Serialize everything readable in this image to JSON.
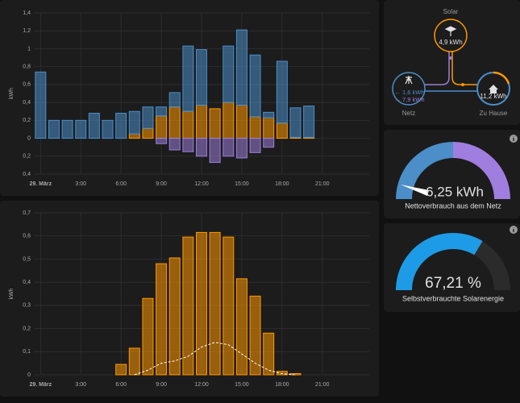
{
  "chart_data": [
    {
      "type": "bar",
      "stacked": true,
      "ylabel": "kWh",
      "x": [
        0,
        1,
        2,
        3,
        4,
        5,
        6,
        7,
        8,
        9,
        10,
        11,
        12,
        13,
        14,
        15,
        16,
        17,
        18,
        19,
        20
      ],
      "xlim": [
        -0.5,
        24.5
      ],
      "xticks": [
        {
          "value": 0,
          "label": "29. März"
        },
        {
          "value": 3,
          "label": "3:00"
        },
        {
          "value": 6,
          "label": "6:00"
        },
        {
          "value": 9,
          "label": "9:00"
        },
        {
          "value": 12,
          "label": "12:00"
        },
        {
          "value": 15,
          "label": "15:00"
        },
        {
          "value": 18,
          "label": "18:00"
        },
        {
          "value": 21,
          "label": "21:00"
        }
      ],
      "ylim": [
        -0.4,
        1.4
      ],
      "yticks": [
        {
          "value": -0.4,
          "label": "0,4"
        },
        {
          "value": -0.2,
          "label": "0,2"
        },
        0,
        {
          "value": 0.2,
          "label": "0,2"
        },
        {
          "value": 0.4,
          "label": "0,4"
        },
        {
          "value": 0.6,
          "label": "0,6"
        },
        {
          "value": 0.8,
          "label": "0,8"
        },
        1,
        {
          "value": 1.2,
          "label": "1,2"
        },
        {
          "value": 1.4,
          "label": "1,4"
        }
      ],
      "grid": true,
      "series": [
        {
          "color": "#ff9800",
          "values": [
            0,
            0,
            0,
            0,
            0,
            0,
            0,
            0.05,
            0.11,
            0.25,
            0.35,
            0.3,
            0.37,
            0.33,
            0.4,
            0.37,
            0.24,
            0.23,
            0.17,
            0.01,
            0.01
          ]
        },
        {
          "color": "#4b8ec8",
          "values": [
            0.74,
            0.2,
            0.2,
            0.2,
            0.28,
            0.2,
            0.28,
            0.25,
            0.24,
            0.1,
            0.16,
            0.73,
            0.62,
            0,
            0.63,
            0.84,
            0.69,
            0.06,
            0.69,
            0.33,
            0.35
          ]
        },
        {
          "color": "#9b7ed8",
          "values": [
            0,
            0,
            0,
            0,
            0,
            0,
            0,
            0,
            0,
            -0.06,
            -0.13,
            -0.15,
            -0.2,
            -0.27,
            -0.2,
            -0.22,
            -0.16,
            -0.1,
            0,
            0,
            0
          ]
        }
      ]
    },
    {
      "type": "bar",
      "ylabel": "kWh",
      "xlim": [
        -0.5,
        24.5
      ],
      "xticks": [
        {
          "value": 0,
          "label": "29. März"
        },
        {
          "value": 3,
          "label": "3:00"
        },
        {
          "value": 6,
          "label": "6:00"
        },
        {
          "value": 9,
          "label": "9:00"
        },
        {
          "value": 12,
          "label": "12:00"
        },
        {
          "value": 15,
          "label": "15:00"
        },
        {
          "value": 18,
          "label": "18:00"
        },
        {
          "value": 21,
          "label": "21:00"
        }
      ],
      "ylim": [
        0,
        0.7
      ],
      "yticks": [
        0,
        {
          "value": 0.1,
          "label": "0,1"
        },
        {
          "value": 0.2,
          "label": "0,2"
        },
        {
          "value": 0.3,
          "label": "0,3"
        },
        {
          "value": 0.4,
          "label": "0,4"
        },
        {
          "value": 0.5,
          "label": "0,5"
        },
        {
          "value": 0.6,
          "label": "0,6"
        },
        {
          "value": 0.7,
          "label": "0,7"
        }
      ],
      "grid": true,
      "series": [
        {
          "type": "bar",
          "color": "#ff9800",
          "x": [
            6,
            7,
            8,
            9,
            10,
            11,
            12,
            13,
            14,
            15,
            16,
            17,
            18,
            19
          ],
          "values": [
            0.045,
            0.115,
            0.33,
            0.48,
            0.505,
            0.595,
            0.615,
            0.615,
            0.595,
            0.415,
            0.34,
            0.18,
            0.015,
            0.005
          ]
        },
        {
          "type": "line",
          "dashed": true,
          "color": "#ffffff",
          "x": [
            7,
            8,
            9,
            10,
            11,
            12,
            13,
            14,
            15,
            16,
            17,
            18,
            19
          ],
          "values": [
            0,
            0.02,
            0.05,
            0.06,
            0.08,
            0.12,
            0.14,
            0.13,
            0.09,
            0.05,
            0.02,
            0.005,
            0
          ]
        }
      ]
    }
  ],
  "energy_flow": {
    "solar_label": "Solar",
    "solar_value": "4,9 kWh",
    "grid_label": "Netz",
    "grid_in": "← 1,6 kWh",
    "grid_out": "→ 7,9 kWh",
    "home_label": "Zu Hause",
    "home_value": "11,2 kWh"
  },
  "gauges": [
    {
      "value": "6,25 kWh",
      "label": "Nettoverbrauch aus dem Netz"
    },
    {
      "value": "67,21 %",
      "label": "Selbstverbrauchte Solarenergie"
    }
  ]
}
